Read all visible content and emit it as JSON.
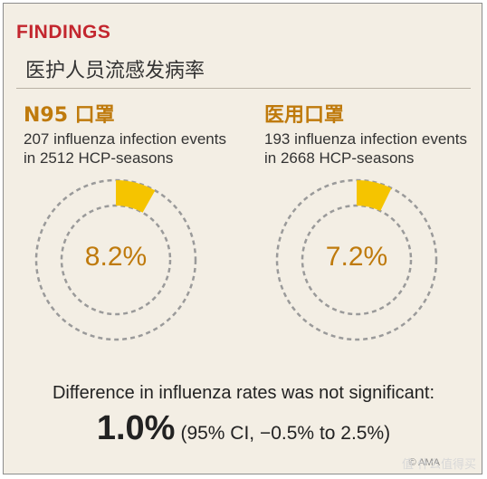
{
  "header": {
    "label": "FINDINGS",
    "subtitle": "医护人员流感发病率"
  },
  "chart_data": [
    {
      "type": "pie",
      "title": "N95 口罩",
      "lines": [
        "207 influenza infection events",
        "in 2512 HCP-seasons"
      ],
      "value_label": "8.2%",
      "values": [
        8.2,
        91.8
      ],
      "colors": {
        "slice": "#f5c400",
        "ring": "#9a9a9a"
      }
    },
    {
      "type": "pie",
      "title": "医用口罩",
      "lines": [
        "193 influenza infection events",
        "in 2668 HCP-seasons"
      ],
      "value_label": "7.2%",
      "values": [
        7.2,
        92.8
      ],
      "colors": {
        "slice": "#f5c400",
        "ring": "#9a9a9a"
      }
    }
  ],
  "footer": {
    "difference": "Difference in influenza rates was not significant:",
    "value": "1.0%",
    "ci": "(95% CI, −0.5% to 2.5%)",
    "copyright": "© AMA",
    "watermark": "值 什么值得买"
  },
  "colors": {
    "background": "#f3eee4",
    "accent_red": "#c3262e",
    "accent_orange": "#bf7a0c",
    "slice_yellow": "#f5c400"
  }
}
